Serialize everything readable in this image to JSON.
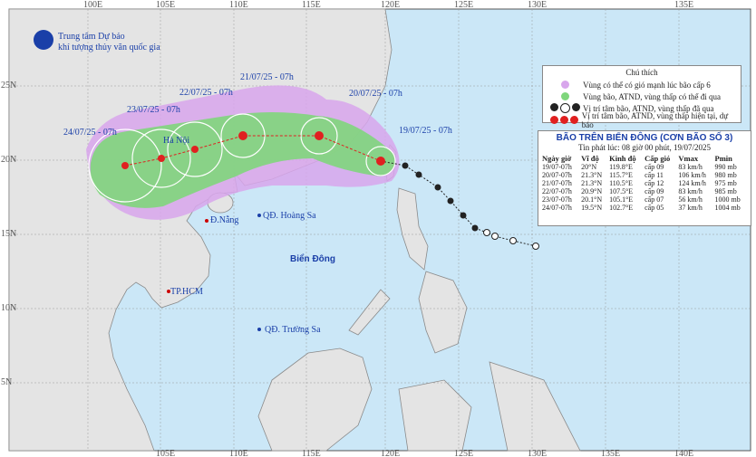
{
  "header": {
    "org_line1": "Trung tâm Dự báo",
    "org_line2": "khí tượng thủy văn quốc gia"
  },
  "grid_labels": {
    "top": [
      "100E",
      "105E",
      "110E",
      "115E",
      "120E",
      "125E",
      "130E",
      "135E"
    ],
    "bottom": [
      "105E",
      "110E",
      "115E",
      "120E",
      "125E",
      "130E",
      "135E",
      "140E"
    ],
    "left": [
      "25N",
      "20N",
      "15N",
      "10N",
      "5N"
    ]
  },
  "track_labels": [
    "24/07/25 - 07h",
    "23/07/25 - 07h",
    "22/07/25 - 07h",
    "21/07/25 - 07h",
    "20/07/25 - 07h",
    "19/07/25 - 07h"
  ],
  "places": {
    "hanoi": "Hà Nội",
    "danang": "Đ.Nẵng",
    "hoangsa": "QĐ. Hoàng Sa",
    "biendong": "Biển Đông",
    "hcm": "TP.HCM",
    "truongsa": "QĐ. Trường Sa"
  },
  "legend": {
    "title": "Chú thích",
    "items": [
      "Vùng có thể có gió mạnh lúc bão cấp 6",
      "Vùng bão, ATND, vùng thấp có thể đi qua",
      "Vị trí tâm bão, ATND, vùng thấp đã qua",
      "Vị trí tâm bão, ATND, vùng thấp hiện tại, dự báo"
    ]
  },
  "table": {
    "title": "BÃO TRÊN BIỂN ĐÔNG (CƠN BÃO SỐ 3)",
    "issued": "Tin phát lúc: 08 giờ 00 phút, 19/07/2025",
    "columns": [
      "Ngày giờ",
      "Vĩ độ",
      "Kinh độ",
      "Cấp gió",
      "Vmax",
      "Pmin"
    ],
    "rows": [
      [
        "19/07-07h",
        "20°N",
        "119.8°E",
        "cấp 09",
        "83 km/h",
        "990 mb"
      ],
      [
        "20/07-07h",
        "21.3°N",
        "115.7°E",
        "cấp 11",
        "106 km/h",
        "980 mb"
      ],
      [
        "21/07-07h",
        "21.3°N",
        "110.5°E",
        "cấp 12",
        "124 km/h",
        "975 mb"
      ],
      [
        "22/07-07h",
        "20.9°N",
        "107.5°E",
        "cấp 09",
        "83 km/h",
        "985 mb"
      ],
      [
        "23/07-07h",
        "20.1°N",
        "105.1°E",
        "cấp 07",
        "56 km/h",
        "1000 mb"
      ],
      [
        "24/07-07h",
        "19.5°N",
        "102.7°E",
        "cấp 05",
        "37 km/h",
        "1004 mb"
      ]
    ]
  }
}
